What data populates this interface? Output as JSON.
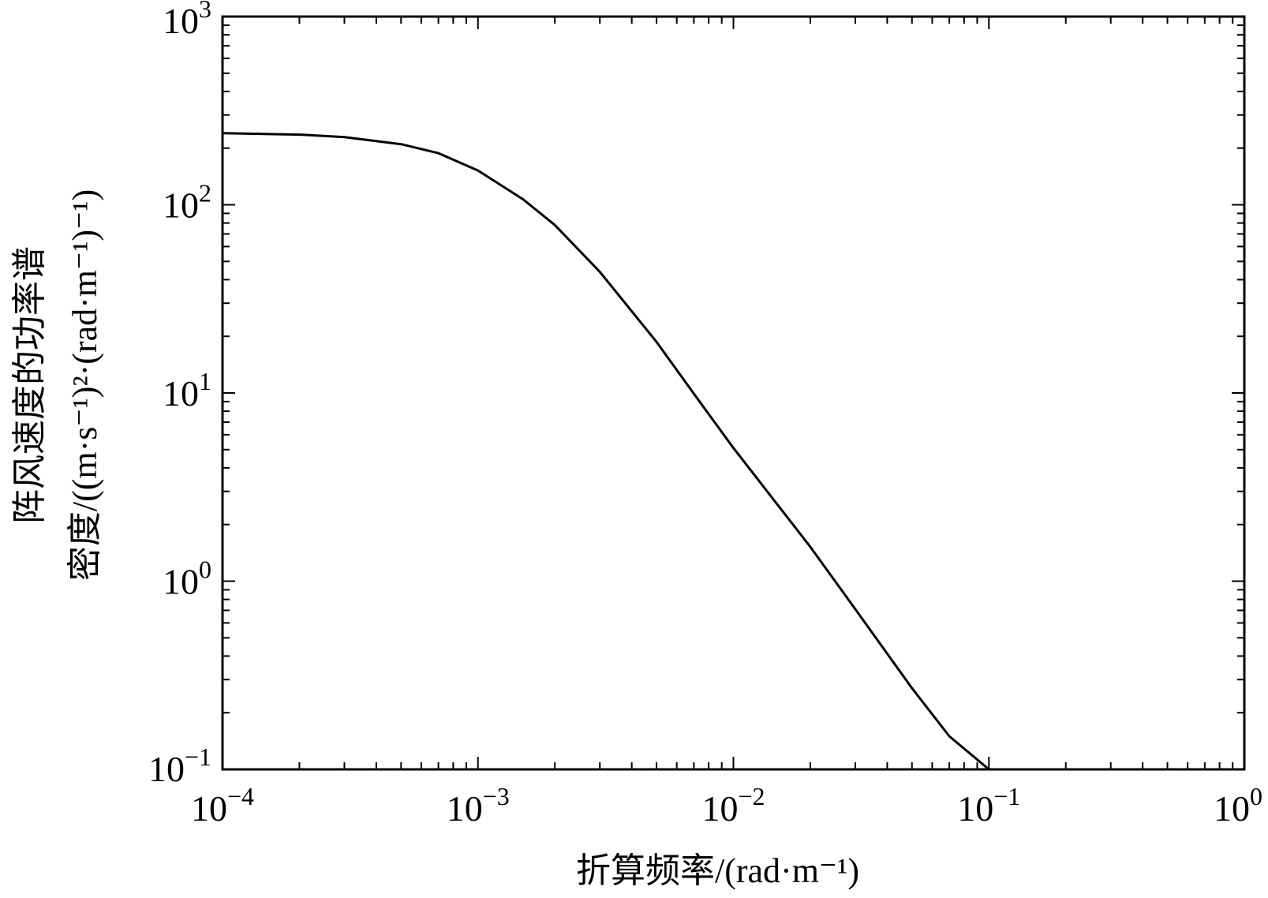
{
  "chart_data": {
    "type": "line",
    "title": "",
    "xlabel": "折算频率/(rad·m⁻¹)",
    "ylabel_line1": "阵风速度的功率谱",
    "ylabel_line2": "密度/((m·s⁻¹)²·(rad·m⁻¹)⁻¹)",
    "xscale": "log",
    "yscale": "log",
    "xlim": [
      0.0001,
      1
    ],
    "ylim": [
      0.1,
      1000
    ],
    "grid": false,
    "x_ticks": [
      {
        "value": 0.0001,
        "base": "10",
        "exp": "−4"
      },
      {
        "value": 0.001,
        "base": "10",
        "exp": "−3"
      },
      {
        "value": 0.01,
        "base": "10",
        "exp": "−2"
      },
      {
        "value": 0.1,
        "base": "10",
        "exp": "−1"
      },
      {
        "value": 1,
        "base": "10",
        "exp": "0"
      }
    ],
    "y_ticks": [
      {
        "value": 0.1,
        "base": "10",
        "exp": "−1"
      },
      {
        "value": 1,
        "base": "10",
        "exp": "0"
      },
      {
        "value": 10,
        "base": "10",
        "exp": "1"
      },
      {
        "value": 100,
        "base": "10",
        "exp": "2"
      },
      {
        "value": 1000,
        "base": "10",
        "exp": "3"
      }
    ],
    "series": [
      {
        "color": "#000000",
        "x": [
          0.0001,
          0.0002,
          0.0003,
          0.0005,
          0.0007,
          0.001,
          0.0015,
          0.002,
          0.003,
          0.005,
          0.007,
          0.01,
          0.02,
          0.03,
          0.05,
          0.07,
          0.1
        ],
        "y": [
          240,
          236,
          229,
          210,
          188,
          152,
          107,
          78,
          44,
          18.7,
          9.9,
          5.1,
          1.52,
          0.71,
          0.27,
          0.15,
          0.1
        ]
      }
    ]
  }
}
